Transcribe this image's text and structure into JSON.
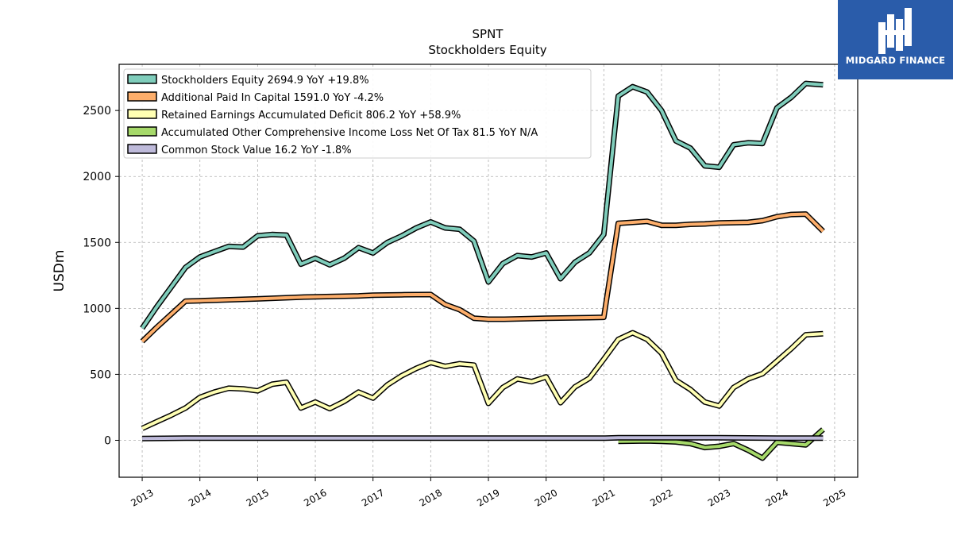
{
  "brand": {
    "name": "MIDGARD FINANCE"
  },
  "chart_data": {
    "type": "line",
    "title": "SPNT",
    "subtitle": "Stockholders  Equity",
    "xlabel": "",
    "ylabel": "USDm",
    "xlim": [
      2012.6,
      2025.4
    ],
    "ylim": [
      -280,
      2850
    ],
    "x_ticks": [
      2013,
      2014,
      2015,
      2016,
      2017,
      2018,
      2019,
      2020,
      2021,
      2022,
      2023,
      2024,
      2025
    ],
    "y_ticks": [
      0,
      500,
      1000,
      1500,
      2000,
      2500
    ],
    "grid": true,
    "legend_position": "top-left",
    "series": [
      {
        "name": "Stockholders Equity  2694.9 YoY +19.8%",
        "color": "#7fcdbb",
        "points": [
          [
            2013.0,
            850
          ],
          [
            2013.25,
            1010
          ],
          [
            2013.5,
            1160
          ],
          [
            2013.75,
            1310
          ],
          [
            2014.0,
            1390
          ],
          [
            2014.25,
            1430
          ],
          [
            2014.5,
            1470
          ],
          [
            2014.75,
            1465
          ],
          [
            2015.0,
            1550
          ],
          [
            2015.25,
            1560
          ],
          [
            2015.5,
            1555
          ],
          [
            2015.75,
            1335
          ],
          [
            2016.0,
            1380
          ],
          [
            2016.25,
            1330
          ],
          [
            2016.5,
            1380
          ],
          [
            2016.75,
            1460
          ],
          [
            2017.0,
            1420
          ],
          [
            2017.25,
            1500
          ],
          [
            2017.5,
            1550
          ],
          [
            2017.75,
            1610
          ],
          [
            2018.0,
            1655
          ],
          [
            2018.25,
            1610
          ],
          [
            2018.5,
            1600
          ],
          [
            2018.75,
            1510
          ],
          [
            2019.0,
            1200
          ],
          [
            2019.25,
            1340
          ],
          [
            2019.5,
            1400
          ],
          [
            2019.75,
            1390
          ],
          [
            2020.0,
            1420
          ],
          [
            2020.25,
            1225
          ],
          [
            2020.5,
            1350
          ],
          [
            2020.75,
            1420
          ],
          [
            2021.0,
            1560
          ],
          [
            2021.25,
            2610
          ],
          [
            2021.5,
            2680
          ],
          [
            2021.75,
            2640
          ],
          [
            2022.0,
            2500
          ],
          [
            2022.25,
            2270
          ],
          [
            2022.5,
            2215
          ],
          [
            2022.75,
            2080
          ],
          [
            2023.0,
            2070
          ],
          [
            2023.25,
            2240
          ],
          [
            2023.5,
            2255
          ],
          [
            2023.75,
            2250
          ],
          [
            2024.0,
            2520
          ],
          [
            2024.25,
            2600
          ],
          [
            2024.5,
            2705
          ],
          [
            2024.8,
            2695
          ]
        ]
      },
      {
        "name": "Additional Paid In Capital  1591.0 YoY -4.2%",
        "color": "#fdae6b",
        "points": [
          [
            2013.0,
            750
          ],
          [
            2013.25,
            855
          ],
          [
            2013.5,
            955
          ],
          [
            2013.75,
            1055
          ],
          [
            2014.0,
            1058
          ],
          [
            2015.0,
            1072
          ],
          [
            2015.75,
            1085
          ],
          [
            2016.75,
            1095
          ],
          [
            2017.0,
            1100
          ],
          [
            2017.5,
            1103
          ],
          [
            2018.0,
            1105
          ],
          [
            2018.25,
            1030
          ],
          [
            2018.5,
            990
          ],
          [
            2018.75,
            925
          ],
          [
            2019.0,
            918
          ],
          [
            2019.25,
            918
          ],
          [
            2020.0,
            925
          ],
          [
            2020.75,
            930
          ],
          [
            2021.0,
            932
          ],
          [
            2021.25,
            1645
          ],
          [
            2021.75,
            1660
          ],
          [
            2022.0,
            1630
          ],
          [
            2022.25,
            1630
          ],
          [
            2022.5,
            1637
          ],
          [
            2022.75,
            1640
          ],
          [
            2023.0,
            1648
          ],
          [
            2023.5,
            1652
          ],
          [
            2023.75,
            1665
          ],
          [
            2024.0,
            1695
          ],
          [
            2024.25,
            1712
          ],
          [
            2024.5,
            1715
          ],
          [
            2024.8,
            1585
          ]
        ]
      },
      {
        "name": "Retained Earnings Accumulated Deficit  806.2 YoY +58.9%",
        "color": "#ffffb3",
        "points": [
          [
            2013.0,
            90
          ],
          [
            2013.25,
            140
          ],
          [
            2013.5,
            190
          ],
          [
            2013.75,
            245
          ],
          [
            2014.0,
            325
          ],
          [
            2014.25,
            365
          ],
          [
            2014.5,
            395
          ],
          [
            2014.75,
            390
          ],
          [
            2015.0,
            375
          ],
          [
            2015.25,
            425
          ],
          [
            2015.5,
            440
          ],
          [
            2015.75,
            245
          ],
          [
            2016.0,
            290
          ],
          [
            2016.25,
            240
          ],
          [
            2016.5,
            295
          ],
          [
            2016.75,
            365
          ],
          [
            2017.0,
            320
          ],
          [
            2017.25,
            420
          ],
          [
            2017.5,
            490
          ],
          [
            2017.75,
            545
          ],
          [
            2018.0,
            590
          ],
          [
            2018.25,
            560
          ],
          [
            2018.5,
            580
          ],
          [
            2018.75,
            570
          ],
          [
            2019.0,
            280
          ],
          [
            2019.25,
            400
          ],
          [
            2019.5,
            465
          ],
          [
            2019.75,
            445
          ],
          [
            2020.0,
            480
          ],
          [
            2020.25,
            285
          ],
          [
            2020.5,
            405
          ],
          [
            2020.75,
            470
          ],
          [
            2021.0,
            615
          ],
          [
            2021.25,
            765
          ],
          [
            2021.5,
            815
          ],
          [
            2021.75,
            765
          ],
          [
            2022.0,
            660
          ],
          [
            2022.25,
            455
          ],
          [
            2022.5,
            385
          ],
          [
            2022.75,
            290
          ],
          [
            2023.0,
            260
          ],
          [
            2023.25,
            400
          ],
          [
            2023.5,
            465
          ],
          [
            2023.75,
            505
          ],
          [
            2024.0,
            600
          ],
          [
            2024.25,
            695
          ],
          [
            2024.5,
            800
          ],
          [
            2024.8,
            808
          ]
        ]
      },
      {
        "name": "Accumulated Other Comprehensive Income Loss Net Of Tax  81.5 YoY N/A",
        "color": "#a6d96a",
        "points": [
          [
            2021.25,
            -8
          ],
          [
            2021.75,
            -5
          ],
          [
            2022.0,
            -8
          ],
          [
            2022.25,
            -12
          ],
          [
            2022.5,
            -25
          ],
          [
            2022.75,
            -55
          ],
          [
            2023.0,
            -45
          ],
          [
            2023.25,
            -25
          ],
          [
            2023.5,
            -75
          ],
          [
            2023.75,
            -135
          ],
          [
            2024.0,
            -15
          ],
          [
            2024.25,
            -25
          ],
          [
            2024.5,
            -35
          ],
          [
            2024.8,
            82
          ]
        ]
      },
      {
        "name": "Common Stock Value  16.2 YoY -1.8%",
        "color": "#bebada",
        "points": [
          [
            2013.0,
            14
          ],
          [
            2013.75,
            17
          ],
          [
            2017.0,
            17
          ],
          [
            2019.0,
            16
          ],
          [
            2021.0,
            16
          ],
          [
            2021.25,
            20
          ],
          [
            2023.0,
            20
          ],
          [
            2024.0,
            17
          ],
          [
            2024.8,
            16
          ]
        ]
      }
    ]
  }
}
